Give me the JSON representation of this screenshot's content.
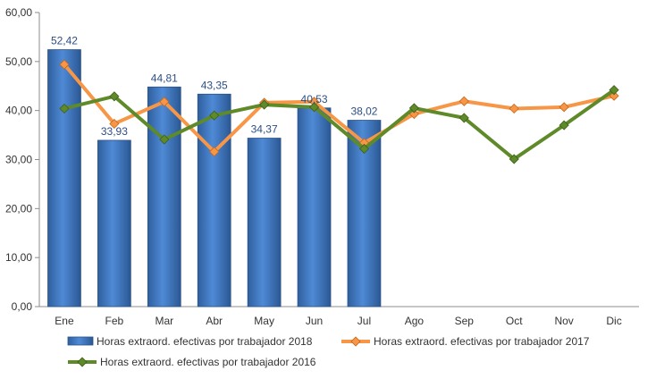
{
  "chart_data": {
    "type": "bar",
    "categories": [
      "Ene",
      "Feb",
      "Mar",
      "Abr",
      "May",
      "Jun",
      "Jul",
      "Ago",
      "Sep",
      "Oct",
      "Nov",
      "Dic"
    ],
    "y_ticks": [
      "0,00",
      "10,00",
      "20,00",
      "30,00",
      "40,00",
      "50,00",
      "60,00"
    ],
    "ylim": [
      0,
      60
    ],
    "grid": false,
    "legend_position": "bottom",
    "bar_series": {
      "name": "Horas extraord. efectivas por trabajador 2018",
      "color": "#3e76c4",
      "values": [
        52.42,
        33.93,
        44.81,
        43.35,
        34.37,
        40.53,
        38.02
      ],
      "labels": [
        "52,42",
        "33,93",
        "44,81",
        "43,35",
        "34,37",
        "40,53",
        "38,02"
      ]
    },
    "line_series": [
      {
        "name": "Horas extraord. efectivas por trabajador 2017",
        "color": "#f79646",
        "values": [
          49.4,
          37.3,
          41.8,
          31.6,
          41.6,
          41.8,
          33.4,
          39.3,
          41.9,
          40.4,
          40.7,
          43.0
        ]
      },
      {
        "name": "Horas extraord. efectivas por trabajador 2016",
        "color": "#5e8a2a",
        "values": [
          40.4,
          42.9,
          34.1,
          39.0,
          41.2,
          40.7,
          32.2,
          40.5,
          38.5,
          30.1,
          37.0,
          44.2
        ]
      }
    ]
  }
}
